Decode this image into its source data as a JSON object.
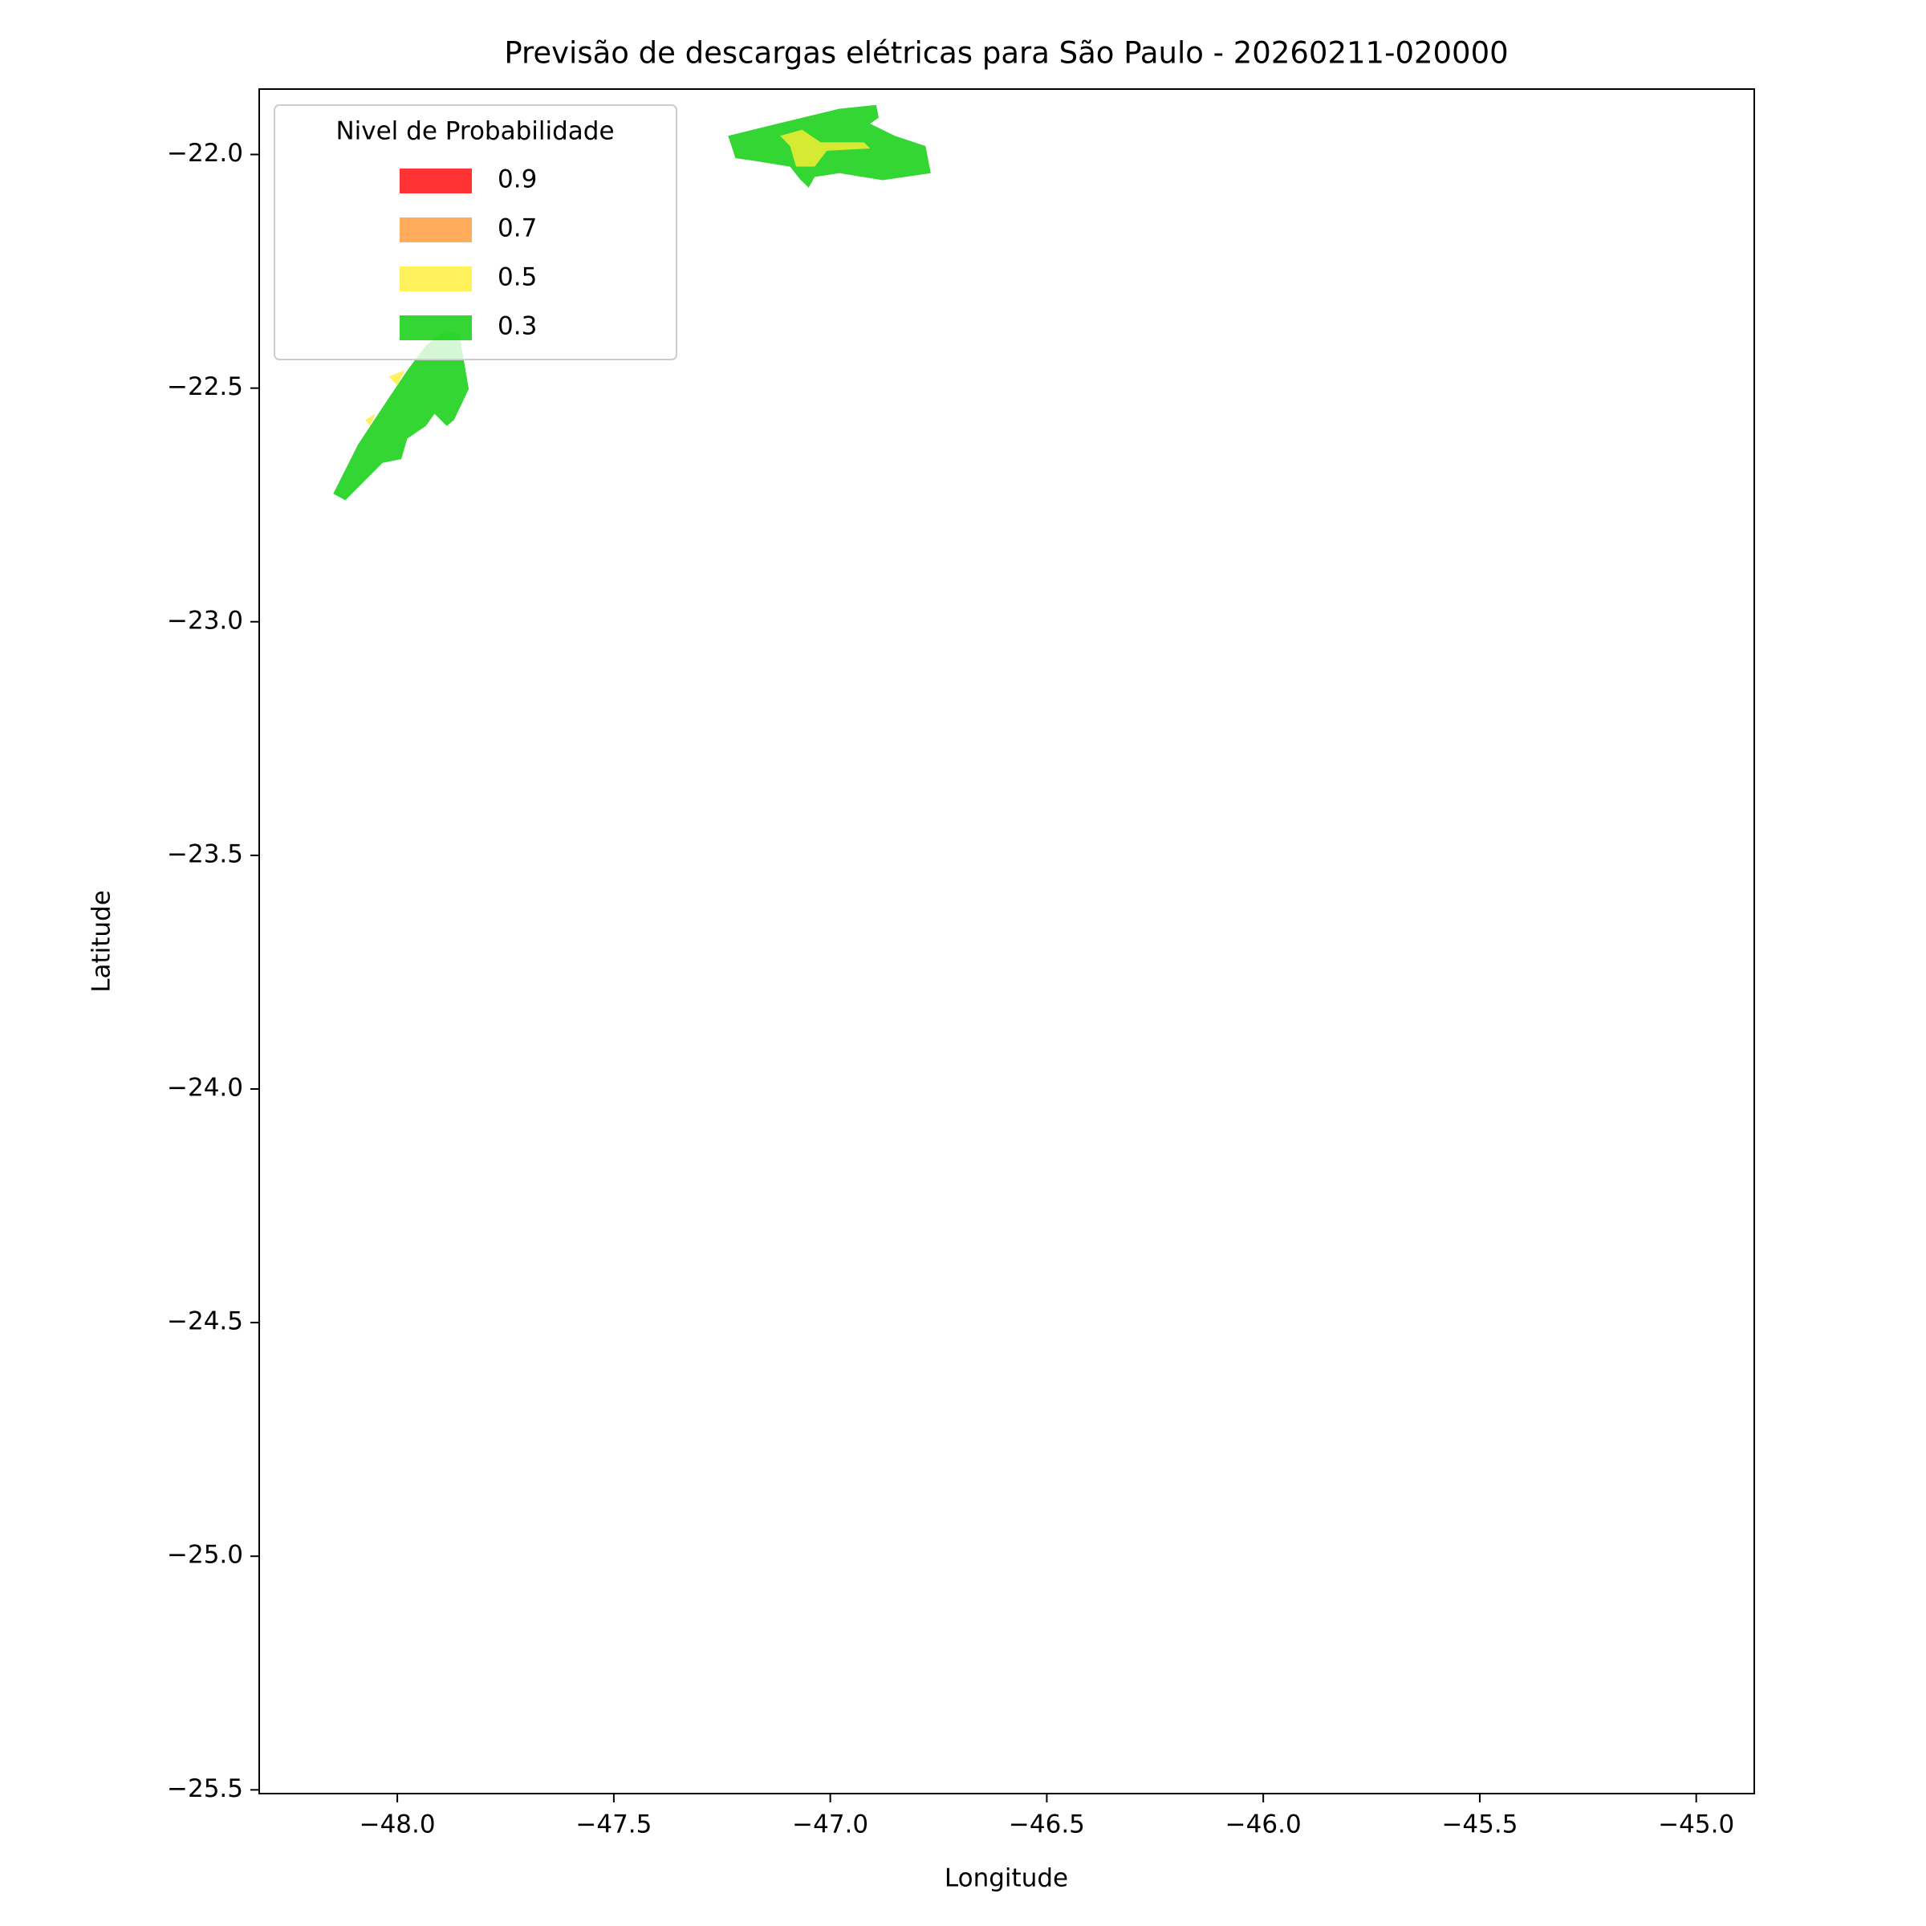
{
  "chart_data": {
    "type": "contour",
    "title": "Previsão de descargas elétricas para São Paulo - 20260211-020000",
    "x_label": "Longitude",
    "y_label": "Latitude",
    "xlim": [
      -48.319,
      -44.866
    ],
    "ylim": [
      -25.508,
      -21.86
    ],
    "xticks": [
      {
        "value": -48.0,
        "label": "−48.0"
      },
      {
        "value": -47.5,
        "label": "−47.5"
      },
      {
        "value": -47.0,
        "label": "−47.0"
      },
      {
        "value": -46.5,
        "label": "−46.5"
      },
      {
        "value": -46.0,
        "label": "−46.0"
      },
      {
        "value": -45.5,
        "label": "−45.5"
      },
      {
        "value": -45.0,
        "label": "−45.0"
      }
    ],
    "yticks": [
      {
        "value": -22.0,
        "label": "−22.0"
      },
      {
        "value": -22.5,
        "label": "−22.5"
      },
      {
        "value": -23.0,
        "label": "−23.0"
      },
      {
        "value": -23.5,
        "label": "−23.5"
      },
      {
        "value": -24.0,
        "label": "−24.0"
      },
      {
        "value": -24.5,
        "label": "−24.5"
      },
      {
        "value": -25.0,
        "label": "−25.0"
      },
      {
        "value": -25.5,
        "label": "−25.5"
      }
    ],
    "legend": {
      "title": "Nivel de Probabilidade",
      "position": "upper left"
    },
    "levels": [
      0.9,
      0.7,
      0.5,
      0.3
    ],
    "level_colors": [
      "#ff0000",
      "#ff9933",
      "#ffee33",
      "#00cc00"
    ],
    "alpha": 0.8,
    "regions": [
      {
        "level": 0.3,
        "lon": [
          -47.236,
          -47.122,
          -46.979,
          -46.894,
          -46.888,
          -46.908,
          -46.851,
          -46.78,
          -46.768,
          -46.879,
          -46.979,
          -47.036,
          -47.05,
          -47.07,
          -47.093,
          -47.179,
          -47.219
        ],
        "lat": [
          -21.96,
          -21.934,
          -21.902,
          -21.894,
          -21.921,
          -21.934,
          -21.96,
          -21.982,
          -22.04,
          -22.055,
          -22.04,
          -22.048,
          -22.071,
          -22.053,
          -22.026,
          -22.013,
          -22.008
        ]
      },
      {
        "level": 0.5,
        "lon": [
          -47.116,
          -47.065,
          -47.022,
          -46.922,
          -46.908,
          -47.008,
          -47.036,
          -47.079,
          -47.093
        ],
        "lat": [
          -21.96,
          -21.947,
          -21.974,
          -21.974,
          -21.987,
          -21.992,
          -22.026,
          -22.026,
          -21.982
        ]
      },
      {
        "level": 0.3,
        "lon": [
          -48.148,
          -48.091,
          -48.034,
          -47.977,
          -47.934,
          -47.892,
          -47.857,
          -47.835,
          -47.869,
          -47.886,
          -47.914,
          -47.934,
          -47.977,
          -47.991,
          -48.034,
          -48.12
        ],
        "lat": [
          -22.726,
          -22.621,
          -22.541,
          -22.462,
          -22.409,
          -22.378,
          -22.383,
          -22.502,
          -22.568,
          -22.581,
          -22.555,
          -22.581,
          -22.608,
          -22.652,
          -22.66,
          -22.74
        ]
      },
      {
        "level": 0.5,
        "lon": [
          -48.02,
          -47.983,
          -48.0
        ],
        "lat": [
          -22.475,
          -22.462,
          -22.494
        ]
      },
      {
        "level": 0.5,
        "lon": [
          -48.074,
          -48.051,
          -48.063
        ],
        "lat": [
          -22.568,
          -22.555,
          -22.581
        ]
      }
    ]
  }
}
